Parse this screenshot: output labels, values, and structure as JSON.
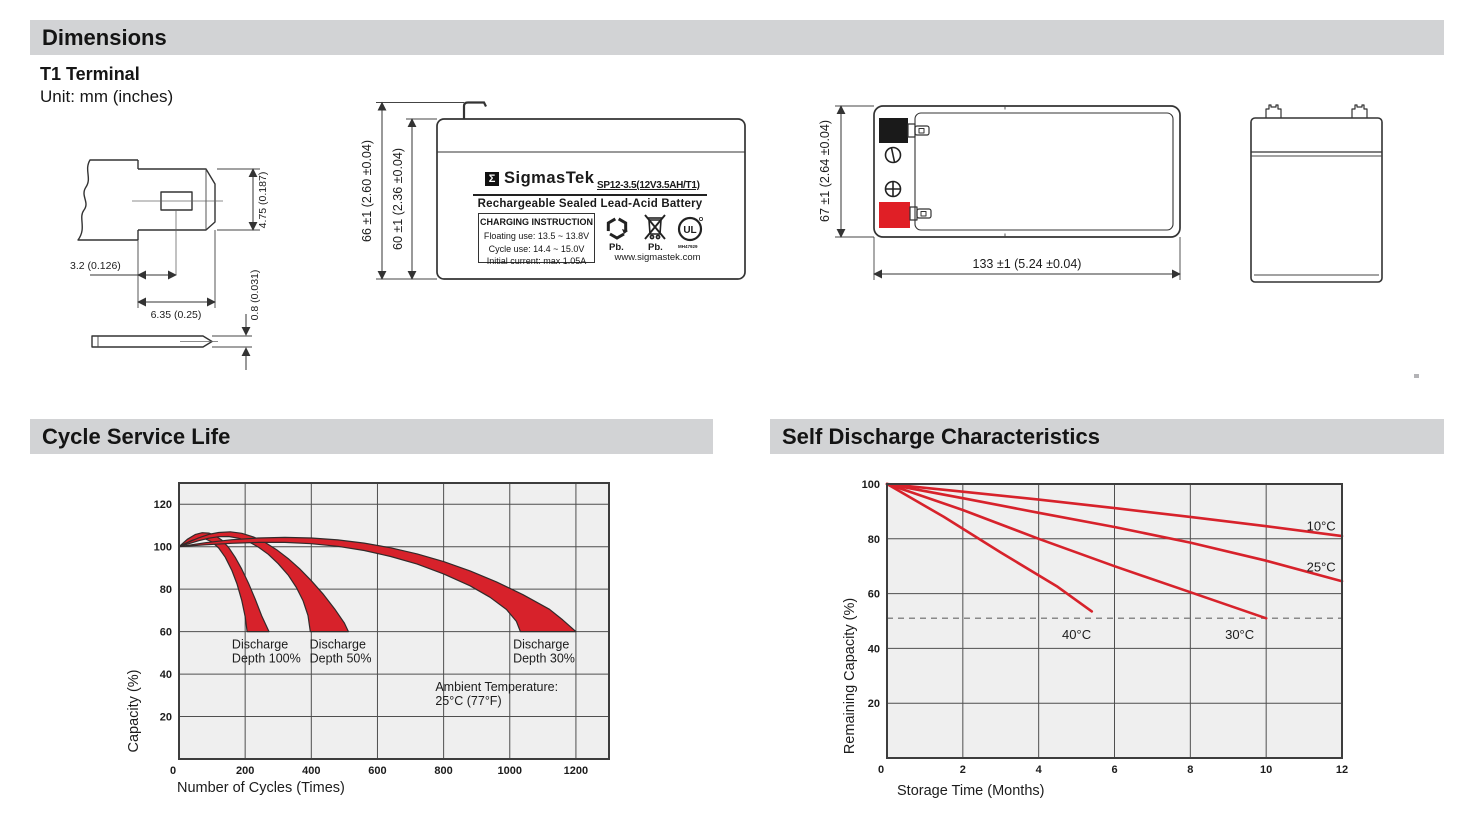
{
  "section_headers": {
    "dimensions": "Dimensions",
    "cycle": "Cycle Service Life",
    "self_discharge": "Self Discharge Characteristics"
  },
  "terminal": {
    "type_title": "T1 Terminal",
    "unit_note": "Unit: mm (inches)",
    "dims": {
      "height": "4.75 (0.187)",
      "hole_offset": "3.2 (0.126)",
      "length": "6.35 (0.25)",
      "thickness": "0.8 (0.031)"
    }
  },
  "front_view": {
    "dim_overall_height": "66 ±1 (2.60 ±0.04)",
    "dim_case_height": "60 ±1 (2.36 ±0.04)",
    "label": {
      "logo_letter": "Σ",
      "brand": "SigmasTek",
      "model": "SP12-3.5(12V3.5AH/T1)",
      "type_line": "Rechargeable Sealed Lead-Acid Battery",
      "charging_title": "CHARGING INSTRUCTION",
      "charging_lines": [
        "Floating use: 13.5 ~ 13.8V",
        "Cycle use: 14.4 ~ 15.0V",
        "Initial current: max 1.05A"
      ],
      "recycle_text": "Pb.",
      "bin_text": "Pb.",
      "ul_code": "MH47929",
      "website": "www.sigmastek.com"
    }
  },
  "top_view": {
    "dim_height": "67 ±1 (2.64 ±0.04)",
    "dim_width": "133 ±1 (5.24 ±0.04)"
  },
  "chart_data": [
    {
      "type": "area",
      "title": "Cycle Service Life",
      "xlabel": "Number of Cycles (Times)",
      "ylabel": "Capacity (%)",
      "xlim": [
        0,
        1300
      ],
      "ylim": [
        0,
        130
      ],
      "xticks": [
        0,
        200,
        400,
        600,
        800,
        1000,
        1200
      ],
      "yticks": [
        20,
        40,
        60,
        80,
        100,
        120
      ],
      "grid": true,
      "legend_position": "none",
      "plot_bg": "#efefef",
      "band_color": "#d7222b",
      "bands": [
        {
          "name": "Discharge Depth 100%",
          "upper": [
            [
              0,
              100
            ],
            [
              25,
              103.5
            ],
            [
              50,
              105.8
            ],
            [
              70,
              106.6
            ],
            [
              90,
              106.4
            ],
            [
              110,
              105.2
            ],
            [
              130,
              103
            ],
            [
              150,
              99.6
            ],
            [
              170,
              95
            ],
            [
              190,
              89.4
            ],
            [
              210,
              82.8
            ],
            [
              230,
              75.4
            ],
            [
              250,
              67.4
            ],
            [
              272,
              60
            ]
          ],
          "lower": [
            [
              0,
              100
            ],
            [
              20,
              101.6
            ],
            [
              40,
              103
            ],
            [
              60,
              103.8
            ],
            [
              80,
              103.6
            ],
            [
              100,
              102.2
            ],
            [
              120,
              99.4
            ],
            [
              140,
              95
            ],
            [
              160,
              88.8
            ],
            [
              175,
              82.6
            ],
            [
              190,
              74.6
            ],
            [
              200,
              67
            ],
            [
              206,
              60
            ]
          ]
        },
        {
          "name": "Discharge Depth 50%",
          "upper": [
            [
              0,
              100
            ],
            [
              30,
              102.2
            ],
            [
              60,
              104.2
            ],
            [
              90,
              105.8
            ],
            [
              120,
              106.7
            ],
            [
              155,
              107
            ],
            [
              190,
              106.3
            ],
            [
              225,
              104.6
            ],
            [
              260,
              102
            ],
            [
              295,
              98.6
            ],
            [
              330,
              94.4
            ],
            [
              365,
              89.6
            ],
            [
              400,
              84
            ],
            [
              435,
              77.8
            ],
            [
              470,
              70.8
            ],
            [
              500,
              64
            ],
            [
              512,
              60
            ]
          ],
          "lower": [
            [
              0,
              100
            ],
            [
              30,
              101.4
            ],
            [
              60,
              102.8
            ],
            [
              90,
              104
            ],
            [
              120,
              104.7
            ],
            [
              150,
              104.8
            ],
            [
              180,
              104
            ],
            [
              210,
              102.4
            ],
            [
              240,
              99.8
            ],
            [
              270,
              96.4
            ],
            [
              300,
              92
            ],
            [
              330,
              86.6
            ],
            [
              355,
              80.8
            ],
            [
              375,
              74.6
            ],
            [
              390,
              67.6
            ],
            [
              397,
              60
            ]
          ]
        },
        {
          "name": "Discharge Depth 30%",
          "upper": [
            [
              0,
              100
            ],
            [
              80,
              101.9
            ],
            [
              160,
              103.3
            ],
            [
              240,
              104.1
            ],
            [
              320,
              104.4
            ],
            [
              400,
              104.1
            ],
            [
              480,
              103.2
            ],
            [
              560,
              101.7
            ],
            [
              640,
              99.5
            ],
            [
              720,
              96.6
            ],
            [
              800,
              93
            ],
            [
              880,
              88.6
            ],
            [
              960,
              83.4
            ],
            [
              1040,
              77.4
            ],
            [
              1120,
              70.5
            ],
            [
              1160,
              65.5
            ],
            [
              1200,
              60
            ]
          ],
          "lower": [
            [
              0,
              100
            ],
            [
              80,
              100.9
            ],
            [
              160,
              101.6
            ],
            [
              240,
              102
            ],
            [
              320,
              102
            ],
            [
              400,
              101.4
            ],
            [
              480,
              100.2
            ],
            [
              560,
              98.2
            ],
            [
              640,
              95.4
            ],
            [
              720,
              91.8
            ],
            [
              800,
              87.2
            ],
            [
              880,
              81.6
            ],
            [
              940,
              76.2
            ],
            [
              990,
              70.4
            ],
            [
              1020,
              64.8
            ],
            [
              1032,
              60
            ]
          ]
        }
      ],
      "annotations": [
        {
          "lines": [
            "Discharge",
            "Depth 100%"
          ],
          "x": 160,
          "y": 52
        },
        {
          "lines": [
            "Discharge",
            "Depth 50%"
          ],
          "x": 395,
          "y": 52
        },
        {
          "lines": [
            "Discharge",
            "Depth 30%"
          ],
          "x": 1010,
          "y": 52
        },
        {
          "lines": [
            "Ambient Temperature:",
            "25°C (77°F)"
          ],
          "x": 775,
          "y": 32
        }
      ]
    },
    {
      "type": "line",
      "title": "Self Discharge Characteristics",
      "xlabel": "Storage Time (Months)",
      "ylabel": "Remaining Capacity (%)",
      "xlim": [
        0,
        12
      ],
      "ylim": [
        0,
        100
      ],
      "xticks": [
        0,
        2,
        4,
        6,
        8,
        10,
        12
      ],
      "yticks": [
        20,
        40,
        60,
        80,
        100
      ],
      "grid": true,
      "legend_position": "inline-labels",
      "plot_bg": "#efefef",
      "line_color": "#d7222b",
      "series": [
        {
          "name": "10°C",
          "points": [
            [
              0,
              100
            ],
            [
              2,
              97.2
            ],
            [
              4,
              94.3
            ],
            [
              6,
              91.2
            ],
            [
              8,
              88
            ],
            [
              10,
              84.6
            ],
            [
              12,
              81
            ]
          ],
          "label_pos": [
            11.45,
            83
          ]
        },
        {
          "name": "25°C",
          "points": [
            [
              0,
              100
            ],
            [
              2,
              94.8
            ],
            [
              4,
              89.5
            ],
            [
              6,
              84.3
            ],
            [
              8,
              78.6
            ],
            [
              10,
              72
            ],
            [
              12,
              64.5
            ]
          ],
          "label_pos": [
            11.45,
            68
          ]
        },
        {
          "name": "30°C",
          "points": [
            [
              0,
              100
            ],
            [
              2,
              90.5
            ],
            [
              4,
              80
            ],
            [
              6,
              70
            ],
            [
              8,
              60.5
            ],
            [
              10,
              51
            ]
          ],
          "label_pos": [
            9.3,
            43.5
          ]
        },
        {
          "name": "40°C",
          "points": [
            [
              0,
              100
            ],
            [
              1.5,
              88
            ],
            [
              3,
              75
            ],
            [
              4.5,
              62.5
            ],
            [
              5.4,
              53.5
            ]
          ],
          "label_pos": [
            5.0,
            43.5
          ]
        }
      ],
      "ref_line": {
        "y": 51,
        "style": "dashed",
        "color": "#8a8a8a"
      }
    }
  ]
}
